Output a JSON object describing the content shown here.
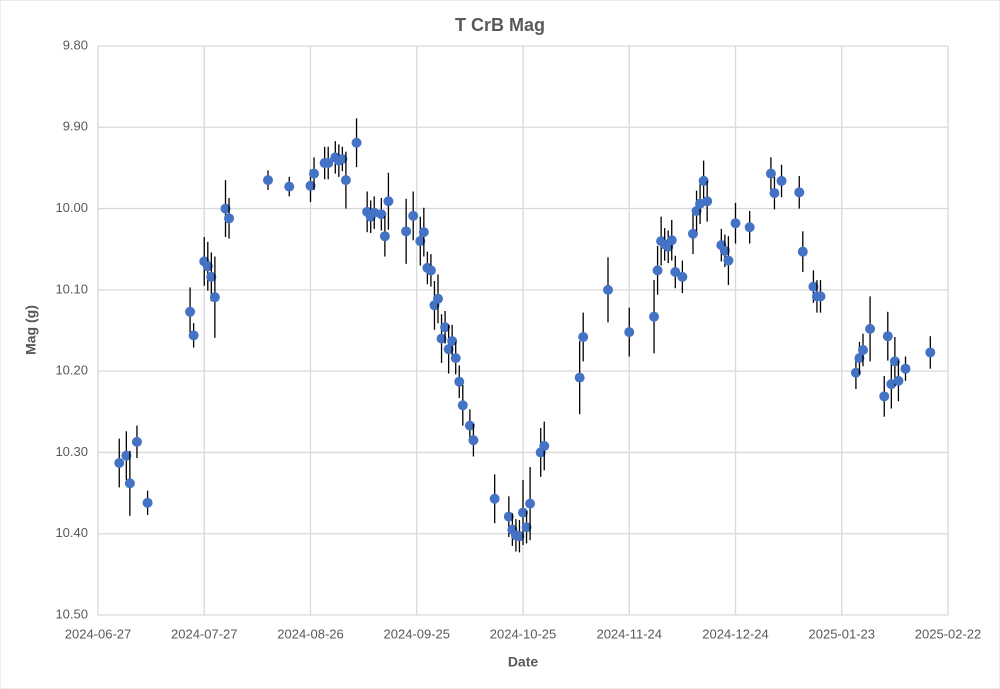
{
  "chart_data": {
    "type": "scatter",
    "title": "T CrB Mag",
    "x_label": "Date",
    "y_label": "Mag (g)",
    "color": "#4472c4",
    "error_color": "#000000",
    "grid": true,
    "y_inverted": true,
    "xlim": [
      "2024-06-27",
      "2025-02-22"
    ],
    "xticks": [
      "2024-06-27",
      "2024-07-27",
      "2024-08-26",
      "2024-09-25",
      "2024-10-25",
      "2024-11-24",
      "2024-12-24",
      "2025-01-23",
      "2025-02-22"
    ],
    "ylim": [
      9.8,
      10.5
    ],
    "yticks": [
      {
        "value": 9.8,
        "label": "9.80"
      },
      {
        "value": 9.9,
        "label": "9.90"
      },
      {
        "value": 10.0,
        "label": "10.00"
      },
      {
        "value": 10.1,
        "label": "10.10"
      },
      {
        "value": 10.2,
        "label": "10.20"
      },
      {
        "value": 10.3,
        "label": "10.30"
      },
      {
        "value": 10.4,
        "label": "10.40"
      },
      {
        "value": 10.5,
        "label": "10.50"
      }
    ],
    "x": [
      "2024-07-03",
      "2024-07-05",
      "2024-07-06",
      "2024-07-08",
      "2024-07-11",
      "2024-07-23",
      "2024-07-24",
      "2024-07-27",
      "2024-07-28",
      "2024-07-29",
      "2024-07-30",
      "2024-08-02",
      "2024-08-03",
      "2024-08-14",
      "2024-08-20",
      "2024-08-26",
      "2024-08-27",
      "2024-08-30",
      "2024-08-31",
      "2024-09-02",
      "2024-09-03",
      "2024-09-04",
      "2024-09-05",
      "2024-09-08",
      "2024-09-11",
      "2024-09-12",
      "2024-09-13",
      "2024-09-15",
      "2024-09-16",
      "2024-09-17",
      "2024-09-22",
      "2024-09-24",
      "2024-09-26",
      "2024-09-27",
      "2024-09-28",
      "2024-09-29",
      "2024-09-30",
      "2024-10-01",
      "2024-10-02",
      "2024-10-03",
      "2024-10-04",
      "2024-10-05",
      "2024-10-06",
      "2024-10-07",
      "2024-10-08",
      "2024-10-10",
      "2024-10-11",
      "2024-10-17",
      "2024-10-21",
      "2024-10-22",
      "2024-10-23",
      "2024-10-24",
      "2024-10-25",
      "2024-10-26",
      "2024-10-27",
      "2024-10-30",
      "2024-10-31",
      "2024-11-10",
      "2024-11-11",
      "2024-11-18",
      "2024-11-24",
      "2024-12-01",
      "2024-12-02",
      "2024-12-03",
      "2024-12-04",
      "2024-12-05",
      "2024-12-06",
      "2024-12-07",
      "2024-12-09",
      "2024-12-12",
      "2024-12-13",
      "2024-12-14",
      "2024-12-15",
      "2024-12-16",
      "2024-12-20",
      "2024-12-21",
      "2024-12-22",
      "2024-12-24",
      "2024-12-28",
      "2025-01-03",
      "2025-01-04",
      "2025-01-06",
      "2025-01-11",
      "2025-01-12",
      "2025-01-15",
      "2025-01-16",
      "2025-01-17",
      "2025-01-27",
      "2025-01-28",
      "2025-01-29",
      "2025-01-31",
      "2025-02-04",
      "2025-02-05",
      "2025-02-06",
      "2025-02-07",
      "2025-02-08",
      "2025-02-10",
      "2025-02-17"
    ],
    "values": [
      10.313,
      10.304,
      10.338,
      10.287,
      10.362,
      10.127,
      10.156,
      10.065,
      10.071,
      10.084,
      10.109,
      10.0,
      10.012,
      9.965,
      9.973,
      9.972,
      9.957,
      9.944,
      9.944,
      9.937,
      9.941,
      9.939,
      9.965,
      9.919,
      10.004,
      10.01,
      10.005,
      10.007,
      10.034,
      9.991,
      10.028,
      10.009,
      10.04,
      10.029,
      10.073,
      10.076,
      10.119,
      10.111,
      10.16,
      10.146,
      10.173,
      10.163,
      10.184,
      10.213,
      10.242,
      10.267,
      10.285,
      10.357,
      10.379,
      10.395,
      10.402,
      10.403,
      10.374,
      10.392,
      10.363,
      10.3,
      10.292,
      10.208,
      10.158,
      10.1,
      10.152,
      10.133,
      10.076,
      10.04,
      10.044,
      10.047,
      10.039,
      10.078,
      10.084,
      10.031,
      10.003,
      9.994,
      9.966,
      9.991,
      10.045,
      10.052,
      10.064,
      10.018,
      10.023,
      9.957,
      9.981,
      9.966,
      9.98,
      10.053,
      10.096,
      10.108,
      10.108,
      10.202,
      10.184,
      10.174,
      10.148,
      10.231,
      10.157,
      10.216,
      10.188,
      10.212,
      10.197,
      10.177
    ],
    "errors": [
      0.03,
      0.03,
      0.04,
      0.02,
      0.015,
      0.03,
      0.015,
      0.03,
      0.03,
      0.03,
      0.05,
      0.035,
      0.025,
      0.012,
      0.012,
      0.02,
      0.02,
      0.02,
      0.02,
      0.02,
      0.02,
      0.015,
      0.035,
      0.03,
      0.025,
      0.02,
      0.02,
      0.02,
      0.025,
      0.035,
      0.04,
      0.03,
      0.03,
      0.03,
      0.02,
      0.02,
      0.03,
      0.03,
      0.03,
      0.02,
      0.03,
      0.02,
      0.02,
      0.02,
      0.025,
      0.02,
      0.02,
      0.03,
      0.025,
      0.02,
      0.02,
      0.02,
      0.04,
      0.02,
      0.045,
      0.03,
      0.03,
      0.045,
      0.03,
      0.04,
      0.03,
      0.045,
      0.03,
      0.03,
      0.02,
      0.02,
      0.025,
      0.02,
      0.02,
      0.025,
      0.025,
      0.025,
      0.025,
      0.025,
      0.02,
      0.02,
      0.03,
      0.025,
      0.02,
      0.02,
      0.02,
      0.02,
      0.02,
      0.025,
      0.02,
      0.02,
      0.02,
      0.02,
      0.02,
      0.02,
      0.04,
      0.025,
      0.03,
      0.03,
      0.03,
      0.025,
      0.015,
      0.02
    ]
  }
}
